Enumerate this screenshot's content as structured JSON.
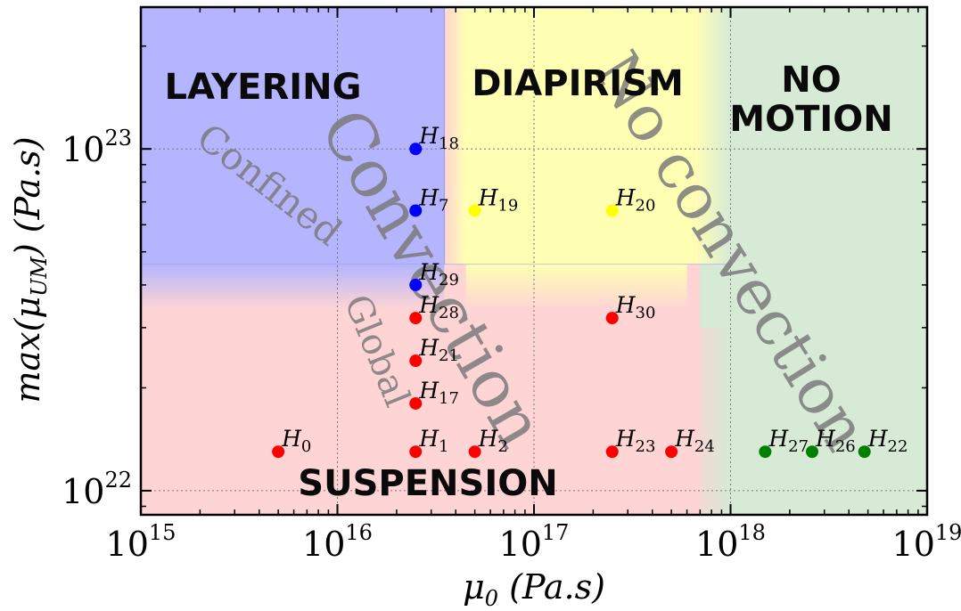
{
  "chart_data": {
    "type": "scatter",
    "x_scale": "log",
    "y_scale": "log",
    "xlim": [
      1000000000000000.0,
      1e+19
    ],
    "ylim": [
      8.5e+21,
      2.6e+23
    ],
    "x_ticks": [
      {
        "value": 1000000000000000.0,
        "base": "10",
        "exp": "15"
      },
      {
        "value": 1e+16,
        "base": "10",
        "exp": "16"
      },
      {
        "value": 1e+17,
        "base": "10",
        "exp": "17"
      },
      {
        "value": 1e+18,
        "base": "10",
        "exp": "18"
      },
      {
        "value": 1e+19,
        "base": "10",
        "exp": "19"
      }
    ],
    "y_ticks": [
      {
        "value": 1e+22,
        "base": "10",
        "exp": "22"
      },
      {
        "value": 1e+23,
        "base": "10",
        "exp": "23"
      }
    ],
    "xlabel": {
      "main": "μ",
      "sub": "0",
      "rest": " (Pa.s)"
    },
    "ylabel": {
      "main": "max(μ",
      "sub": "UM",
      "rest": ") (Pa.s)"
    },
    "grid": true,
    "regions": [
      {
        "name": "LAYERING",
        "color": "#b4b4ff"
      },
      {
        "name": "DIAPIRISM",
        "color": "#ffffb4"
      },
      {
        "name": "NO\nMOTION",
        "color": "#d6ead6"
      },
      {
        "name": "SUSPENSION",
        "color": "#ffd4d4"
      }
    ],
    "overlay_labels": [
      {
        "text": "Confined",
        "kind": "small"
      },
      {
        "text": "Global",
        "kind": "small"
      },
      {
        "text": "Convection",
        "kind": "large"
      },
      {
        "text": "No convection",
        "kind": "large"
      }
    ],
    "series": [
      {
        "color": "#0000ff",
        "points": [
          {
            "x": 2.5e+16,
            "y": 1e+23,
            "name": "H",
            "sub": "18"
          },
          {
            "x": 2.5e+16,
            "y": 6.6e+22,
            "name": "H",
            "sub": "7"
          },
          {
            "x": 2.5e+16,
            "y": 4e+22,
            "name": "H",
            "sub": "29"
          }
        ]
      },
      {
        "color": "#ffff00",
        "points": [
          {
            "x": 5e+16,
            "y": 6.6e+22,
            "name": "H",
            "sub": "19"
          },
          {
            "x": 2.5e+17,
            "y": 6.6e+22,
            "name": "H",
            "sub": "20"
          }
        ]
      },
      {
        "color": "#ff0000",
        "points": [
          {
            "x": 2.5e+16,
            "y": 3.2e+22,
            "name": "H",
            "sub": "28"
          },
          {
            "x": 2.5e+16,
            "y": 2.4e+22,
            "name": "H",
            "sub": "21"
          },
          {
            "x": 2.5e+16,
            "y": 1.8e+22,
            "name": "H",
            "sub": "17"
          },
          {
            "x": 5000000000000000.0,
            "y": 1.3e+22,
            "name": "H",
            "sub": "0"
          },
          {
            "x": 2.5e+16,
            "y": 1.3e+22,
            "name": "H",
            "sub": "1"
          },
          {
            "x": 5e+16,
            "y": 1.3e+22,
            "name": "H",
            "sub": "2"
          },
          {
            "x": 2.5e+17,
            "y": 1.3e+22,
            "name": "H",
            "sub": "23"
          },
          {
            "x": 5e+17,
            "y": 1.3e+22,
            "name": "H",
            "sub": "24"
          },
          {
            "x": 2.5e+17,
            "y": 3.2e+22,
            "name": "H",
            "sub": "30"
          }
        ]
      },
      {
        "color": "#008000",
        "points": [
          {
            "x": 1.5e+18,
            "y": 1.3e+22,
            "name": "H",
            "sub": "27"
          },
          {
            "x": 2.6e+18,
            "y": 1.3e+22,
            "name": "H",
            "sub": "26"
          },
          {
            "x": 4.8e+18,
            "y": 1.3e+22,
            "name": "H",
            "sub": "22"
          }
        ]
      }
    ]
  }
}
